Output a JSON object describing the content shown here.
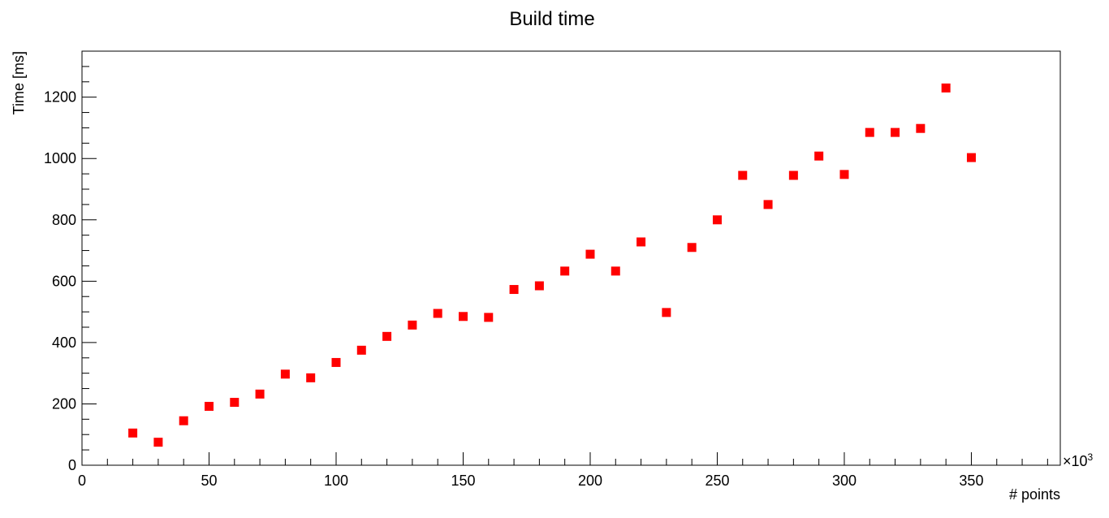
{
  "chart_data": {
    "type": "scatter",
    "title": "Build time",
    "xlabel": "# points",
    "ylabel": "Time [ms]",
    "x_multiplier": "×10",
    "x_multiplier_exp": "3",
    "xlim": [
      0,
      385
    ],
    "ylim": [
      0,
      1350
    ],
    "x_major_ticks": [
      0,
      50,
      100,
      150,
      200,
      250,
      300,
      350
    ],
    "x_minor_step": 10,
    "y_major_ticks": [
      0,
      200,
      400,
      600,
      800,
      1000,
      1200
    ],
    "y_minor_step": 50,
    "grid": false,
    "marker": "square",
    "color": "#ff0000",
    "series": [
      {
        "name": "Build time",
        "x": [
          20,
          30,
          40,
          50,
          60,
          70,
          80,
          90,
          100,
          110,
          120,
          130,
          140,
          150,
          160,
          170,
          180,
          190,
          200,
          210,
          220,
          230,
          240,
          250,
          260,
          270,
          280,
          290,
          300,
          310,
          320,
          330,
          340,
          350
        ],
        "y": [
          105,
          75,
          145,
          192,
          205,
          232,
          297,
          285,
          335,
          375,
          420,
          457,
          495,
          485,
          482,
          573,
          585,
          633,
          688,
          633,
          728,
          498,
          710,
          800,
          945,
          850,
          945,
          1008,
          948,
          1085,
          1085,
          1098,
          1230,
          1003
        ]
      }
    ]
  }
}
